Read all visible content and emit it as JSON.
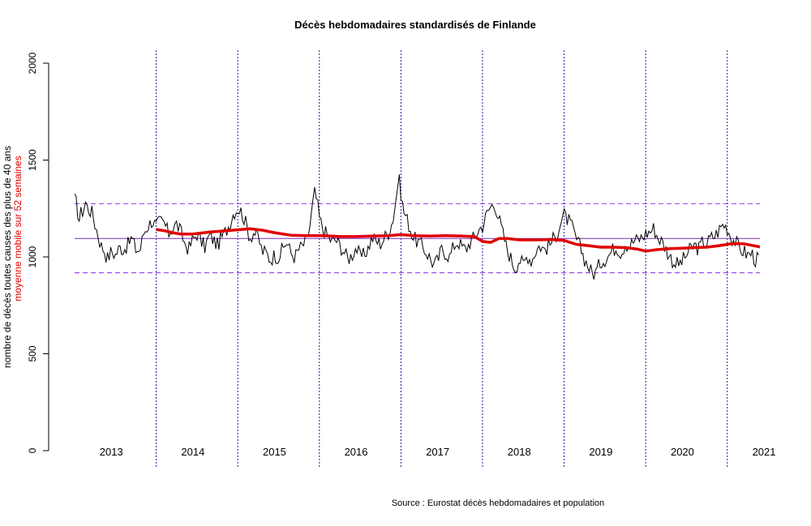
{
  "chart_data": {
    "type": "line",
    "title": "Décès hebdomadaires standardisés de Finlande",
    "ylabel_line1": "nombre de décès toutes causes des plus de 40 ans",
    "ylabel_line2": "moyenne mobile sur 52 semaines",
    "source": "Source : Eurostat décès hebdomadaires et population",
    "ylim": [
      0,
      2000
    ],
    "y_ticks": [
      "0",
      "500",
      "1000",
      "1500",
      "2000"
    ],
    "x_start_year": 2012.55,
    "x_end_year": 2020.95,
    "year_labels": [
      {
        "year": 2013,
        "label": "2013"
      },
      {
        "year": 2014,
        "label": "2014"
      },
      {
        "year": 2015,
        "label": "2015"
      },
      {
        "year": 2016,
        "label": "2016"
      },
      {
        "year": 2017,
        "label": "2017"
      },
      {
        "year": 2018,
        "label": "2018"
      },
      {
        "year": 2019,
        "label": "2019"
      },
      {
        "year": 2020,
        "label": "2020"
      },
      {
        "year": 2021,
        "label": "2021"
      }
    ],
    "year_separators": [
      2013.55,
      2014.55,
      2015.55,
      2016.55,
      2017.55,
      2018.55,
      2019.55,
      2020.55
    ],
    "reference_lines": {
      "mean": 1095,
      "upper": 1275,
      "lower": 918
    },
    "series": [
      {
        "role": "weekly",
        "color": "#000000",
        "anchors": [
          [
            2012.55,
            1295
          ],
          [
            2012.58,
            1270
          ],
          [
            2012.6,
            1180
          ],
          [
            2012.63,
            1230
          ],
          [
            2012.66,
            1240
          ],
          [
            2012.68,
            1290
          ],
          [
            2012.71,
            1250
          ],
          [
            2012.74,
            1240
          ],
          [
            2012.77,
            1225
          ],
          [
            2012.8,
            1170
          ],
          [
            2012.84,
            1110
          ],
          [
            2012.87,
            1060
          ],
          [
            2012.91,
            1040
          ],
          [
            2012.95,
            990
          ],
          [
            2013.0,
            1030
          ],
          [
            2013.05,
            1010
          ],
          [
            2013.1,
            1050
          ],
          [
            2013.15,
            1040
          ],
          [
            2013.2,
            1060
          ],
          [
            2013.25,
            1100
          ],
          [
            2013.3,
            1040
          ],
          [
            2013.35,
            1030
          ],
          [
            2013.4,
            1130
          ],
          [
            2013.45,
            1160
          ],
          [
            2013.5,
            1190
          ],
          [
            2013.55,
            1160
          ],
          [
            2013.6,
            1185
          ],
          [
            2013.65,
            1175
          ],
          [
            2013.7,
            1120
          ],
          [
            2013.75,
            1150
          ],
          [
            2013.8,
            1170
          ],
          [
            2013.85,
            1130
          ],
          [
            2013.9,
            1070
          ],
          [
            2013.95,
            1040
          ],
          [
            2014.0,
            1090
          ],
          [
            2014.05,
            1120
          ],
          [
            2014.1,
            1080
          ],
          [
            2014.15,
            1050
          ],
          [
            2014.2,
            1110
          ],
          [
            2014.25,
            1090
          ],
          [
            2014.3,
            1060
          ],
          [
            2014.35,
            1100
          ],
          [
            2014.4,
            1130
          ],
          [
            2014.45,
            1170
          ],
          [
            2014.5,
            1230
          ],
          [
            2014.55,
            1250
          ],
          [
            2014.6,
            1230
          ],
          [
            2014.65,
            1170
          ],
          [
            2014.7,
            1100
          ],
          [
            2014.75,
            1130
          ],
          [
            2014.8,
            1100
          ],
          [
            2014.85,
            1030
          ],
          [
            2014.9,
            1020
          ],
          [
            2014.95,
            985
          ],
          [
            2015.0,
            1010
          ],
          [
            2015.05,
            1000
          ],
          [
            2015.1,
            1040
          ],
          [
            2015.15,
            1080
          ],
          [
            2015.2,
            1020
          ],
          [
            2015.25,
            1000
          ],
          [
            2015.3,
            1040
          ],
          [
            2015.35,
            1060
          ],
          [
            2015.4,
            1090
          ],
          [
            2015.43,
            1150
          ],
          [
            2015.46,
            1240
          ],
          [
            2015.49,
            1335
          ],
          [
            2015.52,
            1290
          ],
          [
            2015.55,
            1200
          ],
          [
            2015.6,
            1140
          ],
          [
            2015.65,
            1110
          ],
          [
            2015.7,
            1080
          ],
          [
            2015.75,
            1090
          ],
          [
            2015.8,
            1060
          ],
          [
            2015.85,
            1030
          ],
          [
            2015.9,
            990
          ],
          [
            2015.95,
            1010
          ],
          [
            2016.0,
            1050
          ],
          [
            2016.05,
            1000
          ],
          [
            2016.1,
            1010
          ],
          [
            2016.15,
            1050
          ],
          [
            2016.2,
            1100
          ],
          [
            2016.25,
            1080
          ],
          [
            2016.3,
            1070
          ],
          [
            2016.35,
            1100
          ],
          [
            2016.4,
            1130
          ],
          [
            2016.45,
            1190
          ],
          [
            2016.49,
            1300
          ],
          [
            2016.51,
            1380
          ],
          [
            2016.53,
            1390
          ],
          [
            2016.55,
            1330
          ],
          [
            2016.58,
            1240
          ],
          [
            2016.62,
            1200
          ],
          [
            2016.66,
            1150
          ],
          [
            2016.7,
            1100
          ],
          [
            2016.75,
            1080
          ],
          [
            2016.8,
            1060
          ],
          [
            2016.85,
            1030
          ],
          [
            2016.9,
            1000
          ],
          [
            2016.95,
            960
          ],
          [
            2017.0,
            980
          ],
          [
            2017.05,
            1040
          ],
          [
            2017.1,
            1020
          ],
          [
            2017.15,
            1000
          ],
          [
            2017.2,
            1060
          ],
          [
            2017.25,
            1080
          ],
          [
            2017.3,
            1050
          ],
          [
            2017.35,
            1040
          ],
          [
            2017.4,
            1080
          ],
          [
            2017.45,
            1100
          ],
          [
            2017.5,
            1140
          ],
          [
            2017.55,
            1160
          ],
          [
            2017.6,
            1220
          ],
          [
            2017.65,
            1260
          ],
          [
            2017.7,
            1275
          ],
          [
            2017.75,
            1200
          ],
          [
            2017.8,
            1120
          ],
          [
            2017.85,
            1040
          ],
          [
            2017.9,
            990
          ],
          [
            2017.95,
            940
          ],
          [
            2018.0,
            990
          ],
          [
            2018.05,
            960
          ],
          [
            2018.1,
            1010
          ],
          [
            2018.15,
            980
          ],
          [
            2018.2,
            1030
          ],
          [
            2018.25,
            1060
          ],
          [
            2018.3,
            1040
          ],
          [
            2018.35,
            1050
          ],
          [
            2018.4,
            1080
          ],
          [
            2018.45,
            1110
          ],
          [
            2018.5,
            1170
          ],
          [
            2018.55,
            1215
          ],
          [
            2018.6,
            1190
          ],
          [
            2018.65,
            1150
          ],
          [
            2018.7,
            1090
          ],
          [
            2018.75,
            1050
          ],
          [
            2018.8,
            990
          ],
          [
            2018.85,
            950
          ],
          [
            2018.9,
            910
          ],
          [
            2018.95,
            930
          ],
          [
            2019.0,
            975
          ],
          [
            2019.05,
            990
          ],
          [
            2019.1,
            1010
          ],
          [
            2019.15,
            1040
          ],
          [
            2019.2,
            1050
          ],
          [
            2019.25,
            1020
          ],
          [
            2019.3,
            1070
          ],
          [
            2019.35,
            1060
          ],
          [
            2019.4,
            1080
          ],
          [
            2019.45,
            1090
          ],
          [
            2019.5,
            1100
          ],
          [
            2019.55,
            1120
          ],
          [
            2019.6,
            1130
          ],
          [
            2019.65,
            1150
          ],
          [
            2019.7,
            1100
          ],
          [
            2019.75,
            1080
          ],
          [
            2019.8,
            1040
          ],
          [
            2019.85,
            1000
          ],
          [
            2019.9,
            970
          ],
          [
            2019.95,
            960
          ],
          [
            2020.0,
            980
          ],
          [
            2020.05,
            1010
          ],
          [
            2020.1,
            1040
          ],
          [
            2020.15,
            1060
          ],
          [
            2020.2,
            1040
          ],
          [
            2020.25,
            1080
          ],
          [
            2020.3,
            1070
          ],
          [
            2020.35,
            1100
          ],
          [
            2020.4,
            1110
          ],
          [
            2020.45,
            1140
          ],
          [
            2020.5,
            1170
          ],
          [
            2020.55,
            1150
          ],
          [
            2020.6,
            1100
          ],
          [
            2020.65,
            1080
          ],
          [
            2020.7,
            1040
          ],
          [
            2020.75,
            1030
          ],
          [
            2020.8,
            1010
          ],
          [
            2020.85,
            1020
          ],
          [
            2020.9,
            980
          ],
          [
            2020.95,
            1000
          ]
        ]
      },
      {
        "role": "moving-average-52",
        "color": "#e00000",
        "points": [
          [
            2013.55,
            1142
          ],
          [
            2013.65,
            1135
          ],
          [
            2013.75,
            1125
          ],
          [
            2013.85,
            1118
          ],
          [
            2014.0,
            1118
          ],
          [
            2014.2,
            1128
          ],
          [
            2014.4,
            1135
          ],
          [
            2014.55,
            1140
          ],
          [
            2014.7,
            1145
          ],
          [
            2014.85,
            1138
          ],
          [
            2015.0,
            1125
          ],
          [
            2015.2,
            1112
          ],
          [
            2015.4,
            1110
          ],
          [
            2015.6,
            1110
          ],
          [
            2015.8,
            1105
          ],
          [
            2016.0,
            1105
          ],
          [
            2016.2,
            1108
          ],
          [
            2016.4,
            1110
          ],
          [
            2016.55,
            1115
          ],
          [
            2016.7,
            1110
          ],
          [
            2016.9,
            1108
          ],
          [
            2017.1,
            1110
          ],
          [
            2017.3,
            1108
          ],
          [
            2017.45,
            1105
          ],
          [
            2017.55,
            1080
          ],
          [
            2017.65,
            1075
          ],
          [
            2017.75,
            1095
          ],
          [
            2017.85,
            1095
          ],
          [
            2018.0,
            1088
          ],
          [
            2018.2,
            1088
          ],
          [
            2018.4,
            1090
          ],
          [
            2018.55,
            1085
          ],
          [
            2018.7,
            1065
          ],
          [
            2018.85,
            1058
          ],
          [
            2019.0,
            1050
          ],
          [
            2019.15,
            1050
          ],
          [
            2019.3,
            1048
          ],
          [
            2019.45,
            1040
          ],
          [
            2019.55,
            1030
          ],
          [
            2019.7,
            1038
          ],
          [
            2019.85,
            1043
          ],
          [
            2020.0,
            1045
          ],
          [
            2020.15,
            1048
          ],
          [
            2020.3,
            1050
          ],
          [
            2020.45,
            1058
          ],
          [
            2020.6,
            1068
          ],
          [
            2020.75,
            1068
          ],
          [
            2020.85,
            1060
          ],
          [
            2020.95,
            1052
          ]
        ]
      }
    ]
  }
}
